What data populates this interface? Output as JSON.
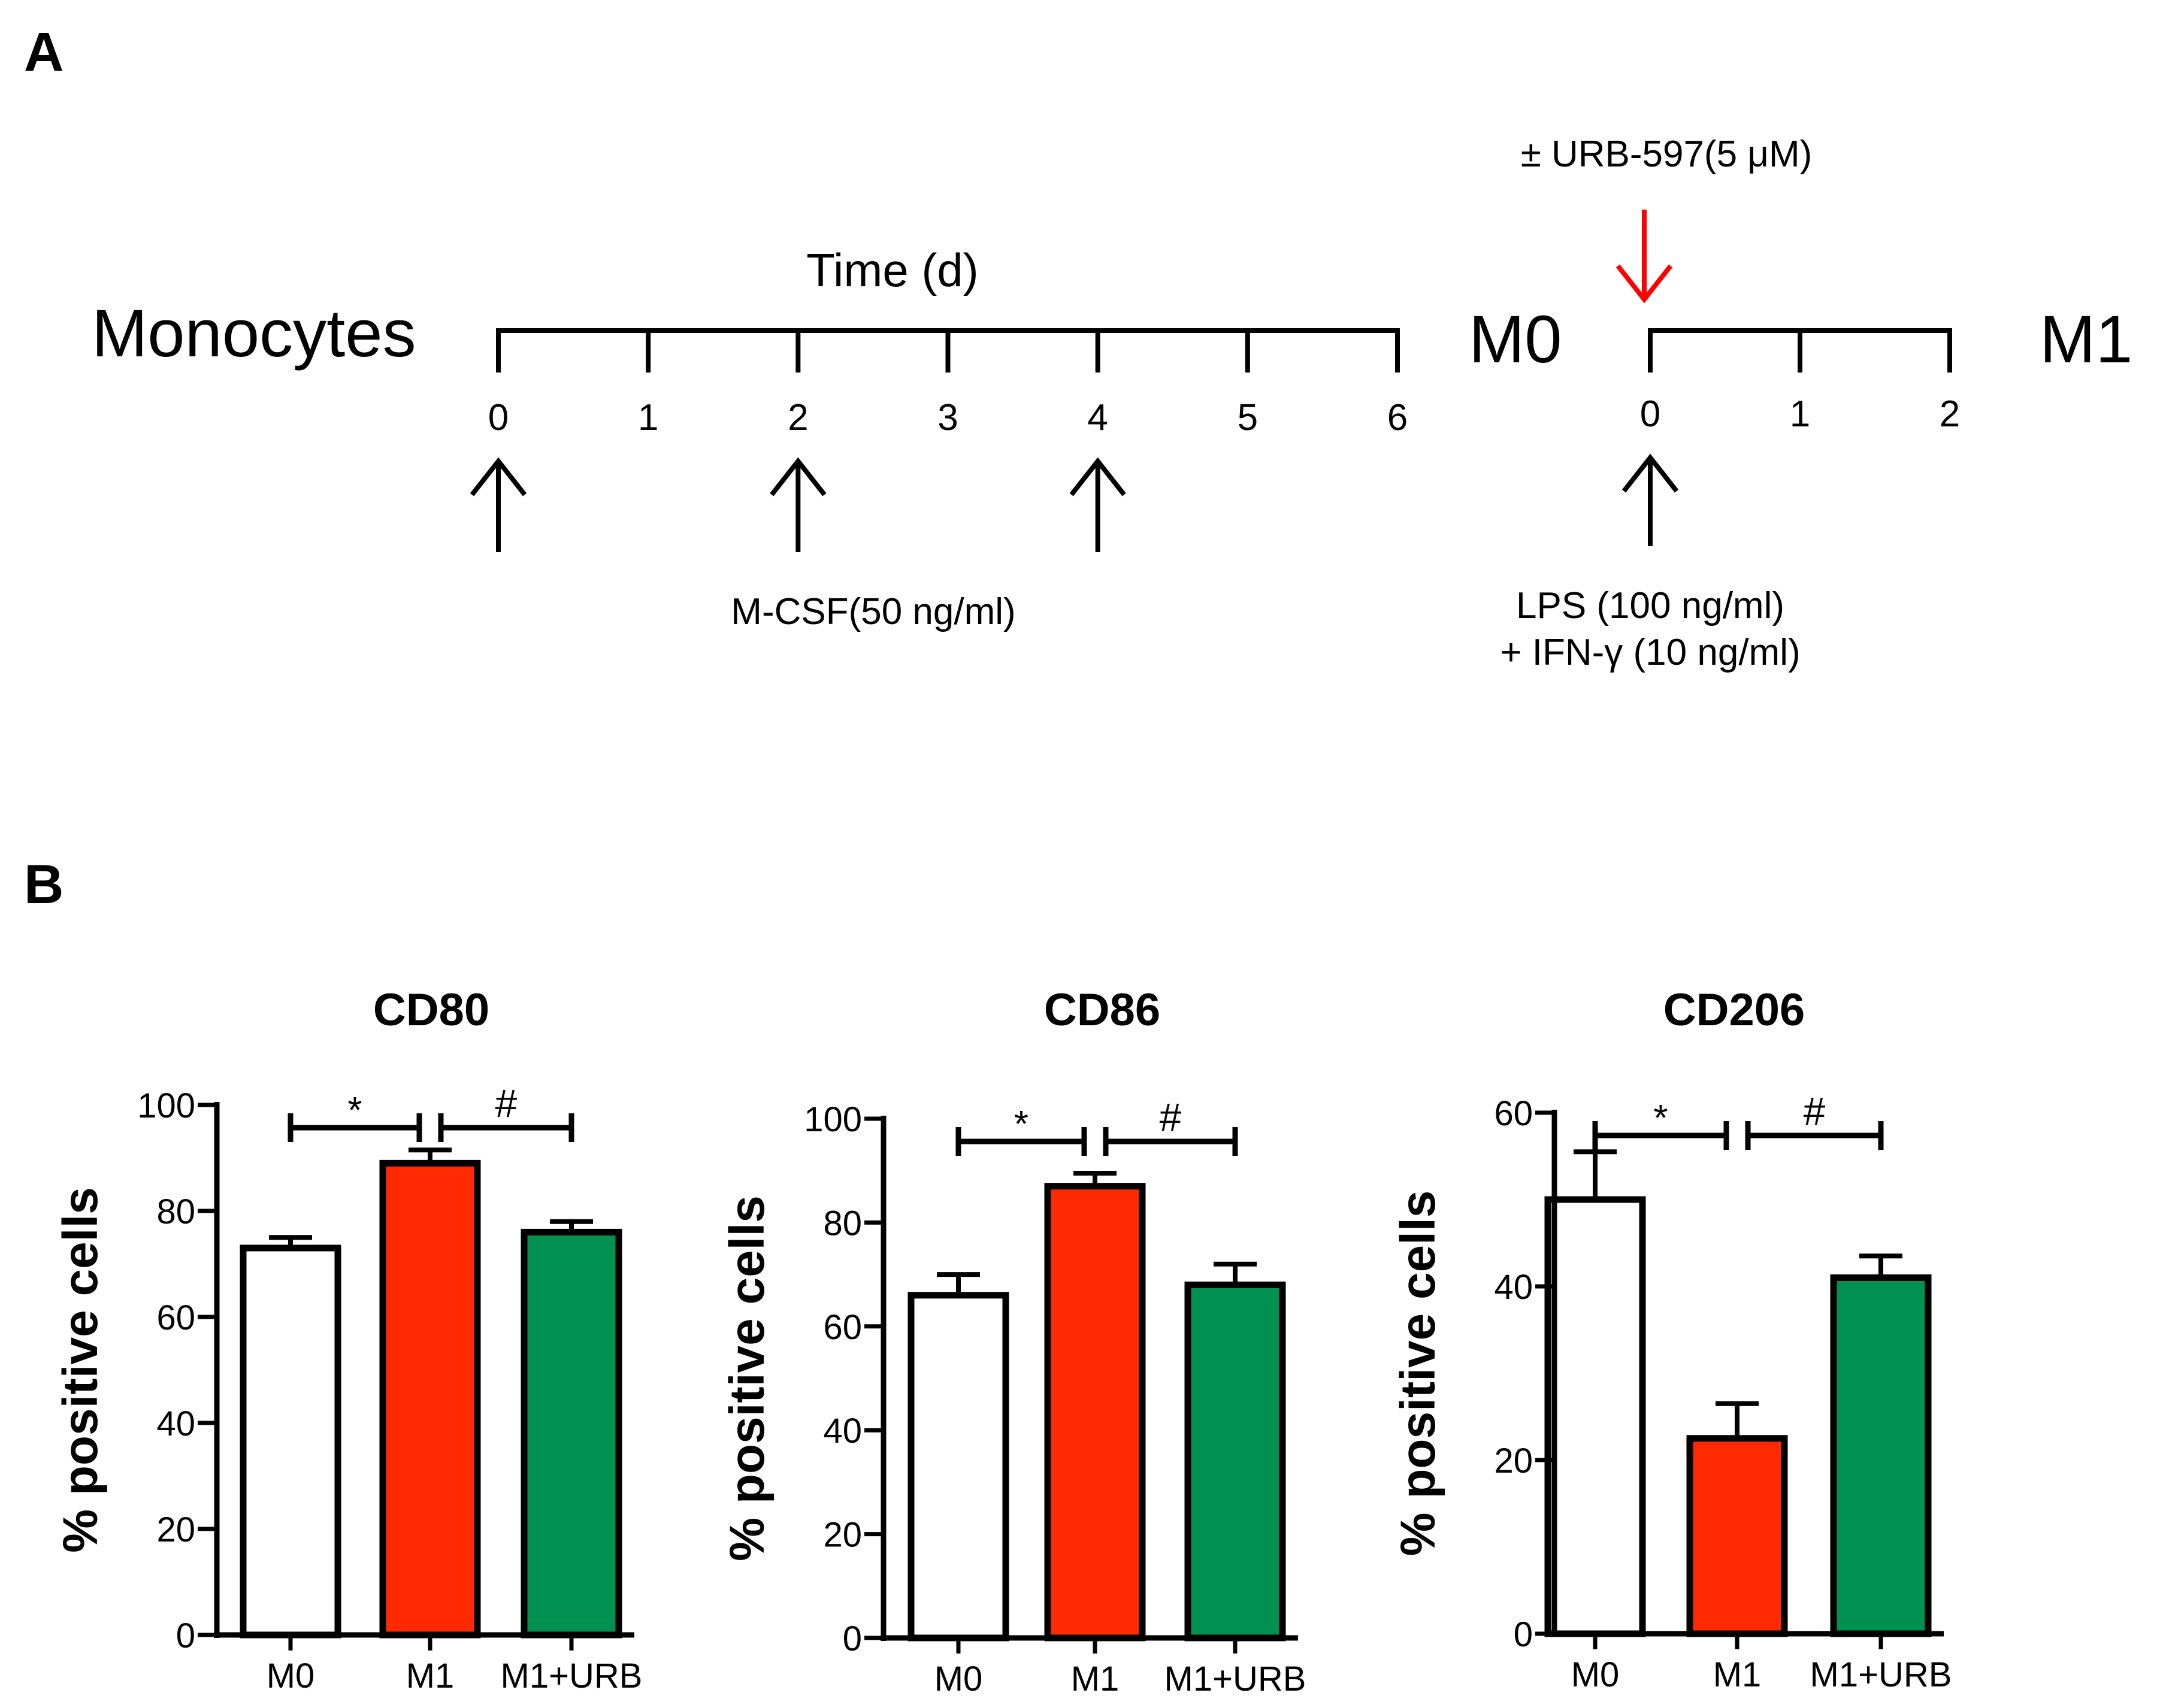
{
  "panel_a": {
    "label": "A",
    "start_label": "Monocytes",
    "axis_title": "Time (d)",
    "mid_label": "M0",
    "end_label": "M1",
    "timeline1_ticks": [
      "0",
      "1",
      "2",
      "3",
      "4",
      "5",
      "6"
    ],
    "timeline2_ticks": [
      "0",
      "1",
      "2"
    ],
    "mcsf_label": "M-CSF(50 ng/ml)",
    "urb_label": "± URB-597(5 μM)",
    "lps_label": "LPS  (100 ng/ml)",
    "ifn_label": "+ IFN-γ (10 ng/ml)",
    "mcsf_days": [
      0,
      2,
      4
    ],
    "lps_day": 0,
    "urb_day": 0
  },
  "panel_b": {
    "label": "B"
  },
  "colors": {
    "m0": "#ffffff",
    "m1": "#ff2a00",
    "m1_urb": "#009050",
    "urb_arrow": "#ff0000",
    "ink": "#000000"
  },
  "chart_data": [
    {
      "type": "bar",
      "title": "CD80",
      "ylabel": "% positive cells",
      "xlabel": "",
      "categories": [
        "M0",
        "M1",
        "M1+URB"
      ],
      "values": [
        73,
        89,
        76
      ],
      "errors": [
        2,
        2.5,
        2
      ],
      "ylim": [
        0,
        100
      ],
      "yticks": [
        "0",
        "20",
        "40",
        "60",
        "80",
        "100"
      ],
      "significance": [
        {
          "from": 0,
          "to": 1,
          "symbol": "*"
        },
        {
          "from": 1,
          "to": 2,
          "symbol": "#"
        }
      ]
    },
    {
      "type": "bar",
      "title": "CD86",
      "ylabel": "% positive cells",
      "xlabel": "",
      "categories": [
        "M0",
        "M1",
        "M1+URB"
      ],
      "values": [
        66,
        87,
        68
      ],
      "errors": [
        4,
        2.5,
        4
      ],
      "ylim": [
        0,
        100
      ],
      "yticks": [
        "0",
        "20",
        "40",
        "60",
        "80",
        "100"
      ],
      "significance": [
        {
          "from": 0,
          "to": 1,
          "symbol": "*"
        },
        {
          "from": 1,
          "to": 2,
          "symbol": "#"
        }
      ]
    },
    {
      "type": "bar",
      "title": "CD206",
      "ylabel": "% positive cells",
      "xlabel": "",
      "categories": [
        "M0",
        "M1",
        "M1+URB"
      ],
      "values": [
        50,
        22.5,
        41
      ],
      "errors": [
        5.5,
        4,
        2.5
      ],
      "ylim": [
        0,
        60
      ],
      "yticks": [
        "0",
        "20",
        "40",
        "60"
      ],
      "significance": [
        {
          "from": 0,
          "to": 1,
          "symbol": "*"
        },
        {
          "from": 1,
          "to": 2,
          "symbol": "#"
        }
      ]
    }
  ]
}
